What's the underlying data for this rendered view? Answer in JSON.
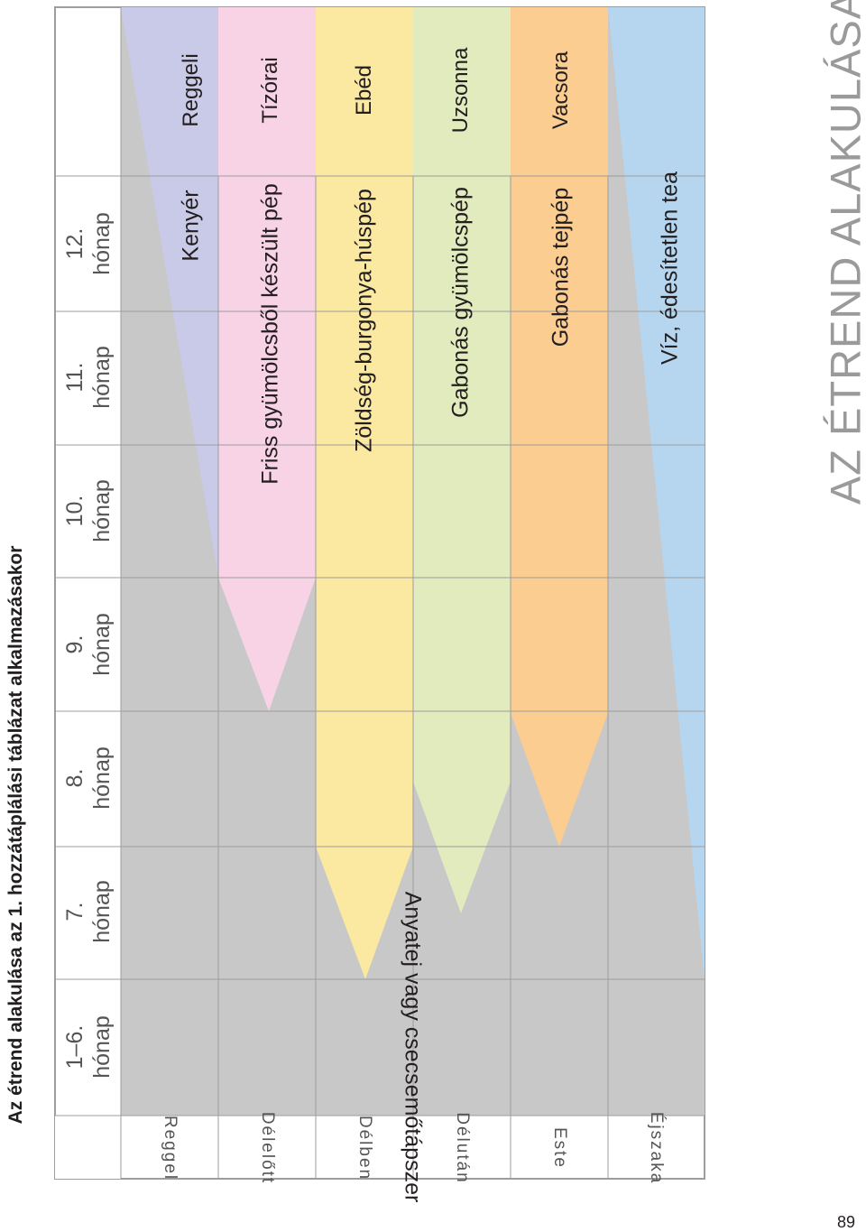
{
  "page": {
    "title": "Az étrend alakulása az 1. hozzátáplálási táblázat alkalmazásakor",
    "section_title": "AZ ÉTREND ALAKULÁSA",
    "page_number": "89"
  },
  "table": {
    "age_columns": [
      {
        "line1": "1–6.",
        "line2": "hónap"
      },
      {
        "line1": "7.",
        "line2": "hónap"
      },
      {
        "line1": "8.",
        "line2": "hónap"
      },
      {
        "line1": "9.",
        "line2": "hónap"
      },
      {
        "line1": "10.",
        "line2": "hónap"
      },
      {
        "line1": "11.",
        "line2": "hónap"
      },
      {
        "line1": "12.",
        "line2": "hónap"
      }
    ],
    "day_parts": [
      "Reggel",
      "Délelőtt",
      "Délben",
      "Délután",
      "Este",
      "Éjszaka"
    ],
    "meals": [
      "Reggeli",
      "Tízórai",
      "Ebéd",
      "Uzsonna",
      "Vacsora"
    ],
    "foods": [
      "Kenyér",
      "Friss gyümölcsből készült pép",
      "Zöldség-burgonya-húspép",
      "Gabonás gyümölcspép",
      "Gabonás tejpép",
      "Víz, édesítetlen tea"
    ],
    "milk_label": "Anyatej vagy csecsemőtápszer"
  },
  "colors": {
    "reggel": "#c9c9e8",
    "delelott": "#f8d3e5",
    "delben": "#fbe8a1",
    "delutan": "#e1ebbd",
    "este": "#fccd90",
    "ejszaka": "#b6d6ef",
    "milk": "#c8c8c9",
    "grid": "#9d9d9d"
  }
}
